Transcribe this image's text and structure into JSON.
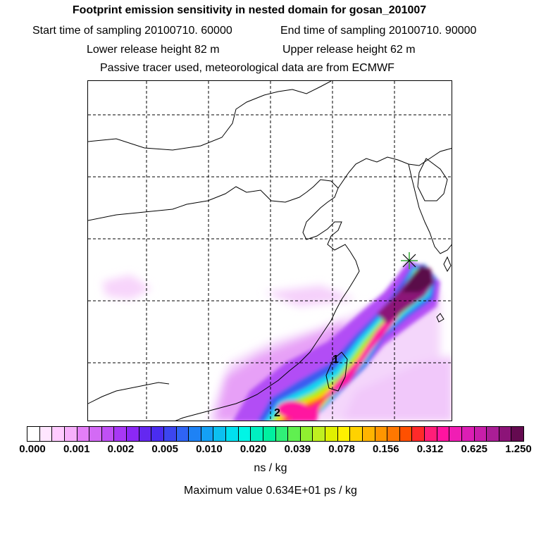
{
  "header": {
    "title": "Footprint emission sensitivity in nested domain for gosan_201007",
    "start_label": "Start time of sampling 20100710. 60000",
    "end_label": "End time of sampling 20100710. 90000",
    "lower_label": "Lower release height   82 m",
    "upper_label": "Upper release height   62 m",
    "info_line": "Passive tracer used, meteorological data are from ECMWF"
  },
  "map": {
    "markers": [
      {
        "label": "1"
      },
      {
        "label": "2"
      }
    ],
    "grid": true
  },
  "colorbar": {
    "ticks": [
      "0.000",
      "0.001",
      "0.002",
      "0.005",
      "0.010",
      "0.020",
      "0.039",
      "0.078",
      "0.156",
      "0.312",
      "0.625",
      "1.250"
    ],
    "colors": [
      "#ffffff",
      "#ffe6ff",
      "#ffccff",
      "#f7b0fb",
      "#e37ef7",
      "#d36af5",
      "#c050f5",
      "#a838f5",
      "#8c28f5",
      "#6428f0",
      "#4a2cf0",
      "#3c46f0",
      "#2f64f5",
      "#1e82f5",
      "#14a0f5",
      "#0cc0f0",
      "#00e0f0",
      "#00f5e6",
      "#00f0c0",
      "#00f0a0",
      "#30f078",
      "#60f050",
      "#90f030",
      "#c0f020",
      "#e0f000",
      "#fff000",
      "#ffd200",
      "#ffb400",
      "#ff9600",
      "#ff7800",
      "#ff5000",
      "#ff2a2a",
      "#ff1e78",
      "#ff14a0",
      "#f01eb4",
      "#dc1eb4",
      "#c81eaa",
      "#aa1e96",
      "#8c1478",
      "#640a50"
    ],
    "unit": "ns / kg"
  },
  "footer": {
    "max_value": "Maximum value  0.634E+01 ps / kg"
  }
}
